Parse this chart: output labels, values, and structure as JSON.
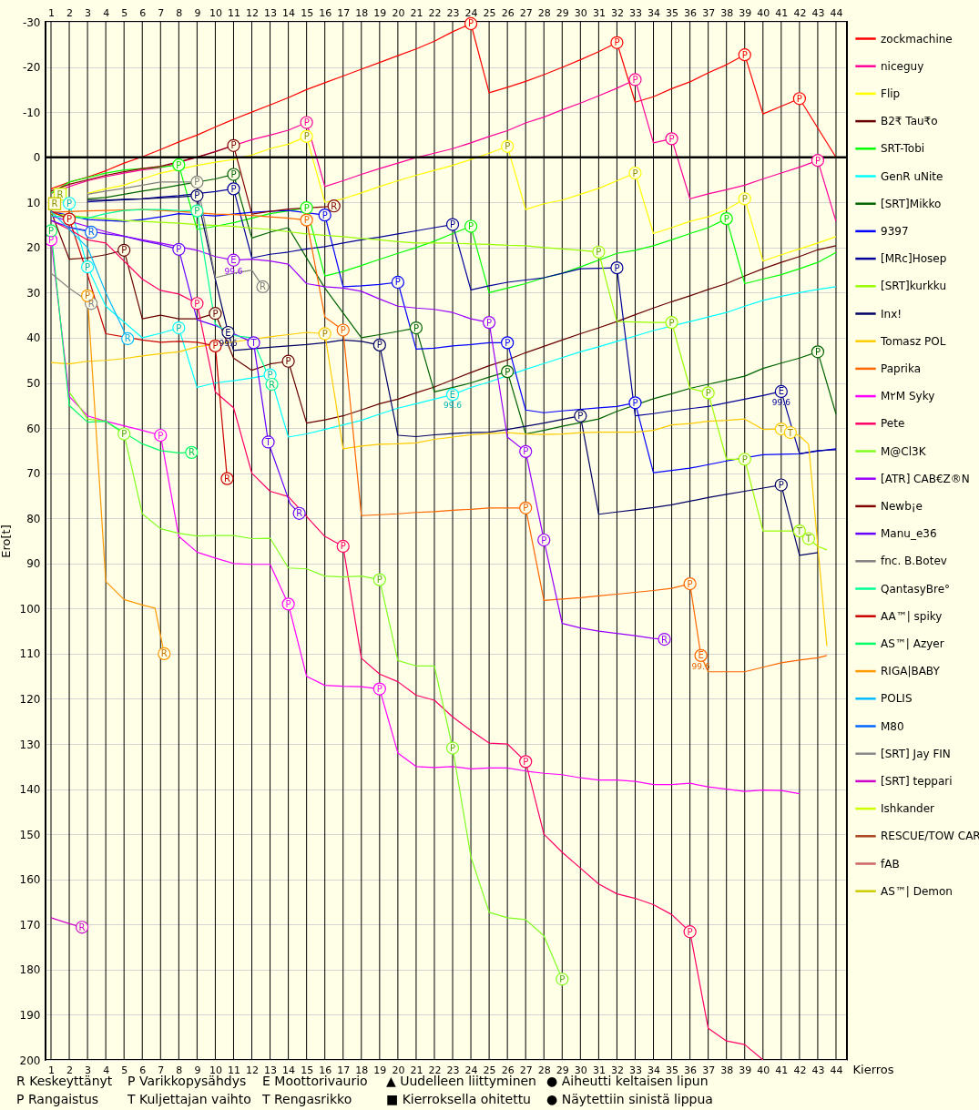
{
  "chart_data": {
    "type": "line",
    "xlabel": "Kierros",
    "ylabel": "Ero[t]",
    "xlim": [
      0.7,
      44.6
    ],
    "ylim": [
      200,
      -30
    ],
    "xticks": [
      1,
      2,
      3,
      4,
      5,
      6,
      7,
      8,
      9,
      10,
      11,
      12,
      13,
      14,
      15,
      16,
      17,
      18,
      19,
      20,
      21,
      22,
      23,
      24,
      25,
      26,
      27,
      28,
      29,
      30,
      31,
      32,
      33,
      34,
      35,
      36,
      37,
      38,
      39,
      40,
      41,
      42,
      43,
      44
    ],
    "x2lim": [
      0.7,
      44.6
    ],
    "x2ticks": [
      1,
      2,
      3,
      4,
      5,
      6,
      7,
      8,
      9,
      10,
      11,
      12,
      13,
      14,
      15,
      16,
      17,
      18,
      19,
      20,
      21,
      22,
      23,
      24,
      25,
      26,
      27,
      28,
      29,
      30,
      31,
      32,
      33,
      34,
      35,
      36,
      37,
      38,
      39,
      40,
      41,
      42,
      43,
      44
    ],
    "yticks": [
      -30,
      -20,
      -10,
      0,
      10,
      20,
      30,
      40,
      50,
      60,
      70,
      80,
      90,
      100,
      110,
      120,
      130,
      140,
      150,
      160,
      170,
      180,
      190,
      200
    ],
    "grid": true,
    "legend": "right",
    "x": [
      1,
      2,
      3,
      4,
      5,
      6,
      7,
      8,
      9,
      10,
      11,
      12,
      13,
      14,
      15,
      16,
      17,
      18,
      19,
      20,
      21,
      22,
      23,
      24,
      25,
      26,
      27,
      28,
      29,
      30,
      31,
      32,
      33,
      34,
      35,
      36,
      37,
      38,
      39,
      40,
      41,
      42,
      43,
      44
    ],
    "ref_lines": [
      {
        "axis": "y",
        "value": 0,
        "color": "#000000"
      }
    ],
    "series": [
      {
        "name": "zockmachine",
        "color": "#ff0000",
        "values": [
          7,
          5.5,
          4.4,
          3,
          1.3,
          -0.1,
          -1.7,
          -3.4,
          -4.9,
          -6.7,
          -8.4,
          -10,
          -11.6,
          -13.2,
          -15,
          -16.5,
          -18,
          -19.5,
          -21,
          -22.5,
          -24,
          -25.7,
          -27.8,
          -29.6,
          -14.3,
          -15.5,
          -16.8,
          -18.3,
          -19.9,
          -21.6,
          -23.4,
          -25.4,
          -12.2,
          -13.4,
          -15.2,
          -16.7,
          -18.7,
          -20.5,
          -22.7,
          -9.6,
          -11.3,
          -13,
          null,
          0
        ]
      },
      {
        "name": "niceguy",
        "color": "#ff0099",
        "values": [
          8,
          6.5,
          5.2,
          4.3,
          3.5,
          2.8,
          2.3,
          null,
          0,
          -1.3,
          null,
          -3.9,
          -4.9,
          -6,
          -7.7,
          6.5,
          5.2,
          3.8,
          2.5,
          1.3,
          0.1,
          -0.9,
          -1.9,
          -3.2,
          -4.6,
          -5.9,
          -7.6,
          -8.9,
          -10.5,
          -12,
          -13.6,
          -15.3,
          -17.2,
          -3.2,
          -4.1,
          9.2,
          8.1,
          7.2,
          6.2,
          4.8,
          3.5,
          2.2,
          0.7,
          14.2
        ]
      },
      {
        "name": "Flip",
        "color": "#ffff00",
        "values": [
          null,
          null,
          8,
          7,
          6.2,
          4.8,
          3.5,
          null,
          1.8,
          1.1,
          0.5,
          -0.5,
          -1.9,
          -2.9,
          -4.6,
          10,
          9.2,
          7.9,
          6.5,
          5.2,
          4,
          2.9,
          1.8,
          0.5,
          -0.9,
          -2.4,
          11.6,
          10.3,
          9.5,
          8.2,
          6.9,
          5.2,
          3.5,
          16.9,
          15.6,
          14.2,
          13.2,
          11.6,
          9.2,
          23,
          21.6,
          20.3,
          19,
          17.6
        ]
      },
      {
        "name": "B2₹ Tau₹o",
        "color": "#660000",
        "values": [
          12,
          22.6,
          22.3,
          21.6,
          20.6,
          35.8,
          35,
          35.8,
          35.8,
          34.6,
          44.5,
          47.2,
          45.8,
          45.2,
          58.9,
          58.2,
          57.3,
          56,
          54.6,
          53.6,
          52.2,
          50.9,
          49.3,
          47.7,
          46.2,
          44.9,
          43.3,
          41.9,
          40.5,
          39.1,
          37.8,
          36.4,
          34.9,
          33.4,
          32,
          30.7,
          29.3,
          28,
          26.3,
          24.7,
          23.3,
          22,
          20.5,
          19.6
        ]
      },
      {
        "name": "SRT-Tobi",
        "color": "#00ff00",
        "values": [
          8,
          5.5,
          4.5,
          3.5,
          2.8,
          2.5,
          2.2,
          1.7,
          16,
          15.3,
          14.5,
          13.5,
          12.5,
          11.9,
          11.2,
          26.3,
          25.3,
          24,
          22.6,
          21.3,
          20,
          18.6,
          16.9,
          15.3,
          30,
          29,
          28,
          26.7,
          25.7,
          24.3,
          null,
          21.3,
          20.6,
          19.6,
          18.3,
          16.9,
          15.6,
          13.6,
          28,
          27,
          26,
          24.7,
          23.3,
          21.1
        ]
      },
      {
        "name": "GenR uNite",
        "color": "#00ffff",
        "values": [
          null,
          10.2,
          24.3,
          33,
          null,
          40,
          39,
          37.8,
          51,
          50,
          49.5,
          48.9,
          48.2,
          62,
          61.3,
          60.3,
          59.3,
          58.3,
          56.9,
          55.6,
          54.6,
          53.6,
          52.6,
          51,
          49.8,
          null,
          47,
          45.7,
          44.4,
          43.1,
          42,
          40.8,
          39.6,
          38.4,
          null,
          36.4,
          35.4,
          34.4,
          33,
          31.7,
          30.8,
          30,
          29.3,
          28.7
        ]
      },
      {
        "name": "[SRT]Mikko",
        "color": "#006400",
        "values": [
          null,
          null,
          9.2,
          8.9,
          8.2,
          7.5,
          6.9,
          6.2,
          null,
          4.8,
          3.8,
          17.9,
          16.6,
          15.6,
          null,
          29,
          null,
          40,
          39.3,
          38.6,
          37.8,
          52,
          null,
          50,
          48.7,
          47.5,
          61.3,
          60.5,
          59.6,
          null,
          58,
          56.3,
          null,
          53.5,
          52.4,
          51.2,
          50.3,
          49.4,
          48.5,
          46.8,
          45.6,
          44.5,
          43.1,
          56.9
        ]
      },
      {
        "name": "9397",
        "color": "#0000ff",
        "values": [
          12,
          null,
          13.8,
          14,
          14.2,
          13.8,
          13.2,
          12.5,
          null,
          13,
          12.6,
          12.2,
          12,
          11.8,
          null,
          12.8,
          28.7,
          28.5,
          28.2,
          27.7,
          42.5,
          42.3,
          41.8,
          41.5,
          41.1,
          41.1,
          56,
          56.6,
          56.2,
          null,
          55.5,
          55.2,
          54.4,
          69.9,
          69.4,
          68.9,
          68.1,
          67.3,
          null,
          65.9,
          65.8,
          65.7,
          65.1,
          64.6
        ]
      },
      {
        "name": "[MRc]Hosep",
        "color": "#000099",
        "values": [
          null,
          null,
          9.9,
          9.6,
          9.4,
          9.2,
          8.8,
          8.5,
          null,
          7.6,
          7,
          22.3,
          21.5,
          21,
          20.3,
          19.8,
          19,
          18.3,
          17.7,
          17,
          16.3,
          15.6,
          14.9,
          29.4,
          28.5,
          27.7,
          27.2,
          26.7,
          25.7,
          24.7,
          24.6,
          24.5,
          57.3,
          56.8,
          56.2,
          55.7,
          55.2,
          54.4,
          53.6,
          52.8,
          51.9,
          65.7,
          65,
          64.8
        ]
      },
      {
        "name": "[SRT]kurkku",
        "color": "#99ff00",
        "x": [
          1,
          2,
          3,
          4,
          5,
          6,
          7,
          8,
          9,
          10,
          11,
          12,
          13,
          14,
          15,
          16,
          17,
          18,
          19,
          20,
          21,
          22,
          23,
          24,
          25,
          26,
          27,
          28,
          29,
          30,
          31,
          32,
          33,
          34,
          35,
          36,
          37,
          38,
          39,
          40,
          41,
          42,
          43,
          43.5
        ],
        "values": [
          12.5,
          null,
          13.3,
          13.6,
          14,
          14.2,
          14.4,
          14.6,
          14.9,
          15.1,
          15.3,
          15.7,
          16,
          16.5,
          17,
          17.3,
          17.6,
          18,
          18.3,
          18.7,
          19,
          19,
          19,
          19.2,
          19.3,
          19.5,
          19.6,
          20,
          20.3,
          20.6,
          21,
          36.4,
          36.5,
          36.6,
          36.6,
          51.2,
          52.2,
          66.9,
          66.9,
          82.8,
          82.8,
          82.8,
          86.2,
          87
        ]
      },
      {
        "name": "Inx!",
        "color": "#000066",
        "x": [
          3,
          4,
          5,
          6,
          7,
          8,
          9,
          10,
          10.7,
          11,
          12,
          13,
          14,
          15,
          16,
          17,
          18,
          19,
          20,
          21,
          22,
          23,
          24,
          25,
          26,
          27,
          28,
          29,
          30,
          31,
          32,
          33,
          34,
          35,
          36,
          37,
          38,
          39,
          40,
          41,
          42,
          43
        ],
        "values": [
          9.5,
          9.5,
          9.3,
          9.2,
          9,
          8.8,
          8.5,
          27,
          38.8,
          42.8,
          null,
          42.1,
          41.8,
          41.5,
          41.1,
          40.5,
          40.8,
          41.6,
          61.6,
          61.9,
          61.5,
          61.2,
          61,
          60.9,
          60.3,
          59.6,
          58.9,
          58.1,
          57.3,
          79.1,
          78.6,
          78.1,
          77.6,
          77,
          76.2,
          75.4,
          74.7,
          74,
          73.3,
          72.6,
          88.2,
          87.6
        ]
      },
      {
        "name": "Tomasz POL",
        "color": "#ffcc00",
        "x": [
          1,
          2,
          3,
          4,
          5,
          6,
          7,
          8,
          9,
          10,
          11,
          12,
          13,
          14,
          15,
          16,
          17,
          18,
          19,
          20,
          21,
          22,
          23,
          24,
          25,
          26,
          27,
          28,
          29,
          30,
          31,
          32,
          33,
          34,
          35,
          36,
          37,
          38,
          39,
          40,
          41,
          42,
          42.5,
          43.5
        ],
        "values": [
          45.5,
          45.8,
          45.2,
          45,
          44.6,
          44,
          43.5,
          43.1,
          42,
          null,
          null,
          null,
          39.8,
          39.3,
          38.8,
          39.1,
          64.6,
          64,
          63.6,
          63.5,
          63.3,
          62.5,
          62,
          61.5,
          61.2,
          61,
          61.3,
          61.4,
          61.3,
          61,
          60.9,
          60.9,
          60.9,
          60.5,
          59.3,
          59,
          58.5,
          58.3,
          58,
          60.3,
          60.2,
          61.7,
          63.6,
          108.3
        ]
      },
      {
        "name": "Paprika",
        "color": "#ff6600",
        "x": [
          1,
          2,
          3,
          4,
          5,
          6,
          7,
          8,
          9,
          10,
          11,
          12,
          13,
          14,
          15,
          16,
          17,
          18,
          19,
          20,
          21,
          22,
          23,
          24,
          25,
          26,
          27,
          28,
          29,
          30,
          31,
          32,
          33,
          34,
          35,
          36,
          36.6,
          37,
          38,
          39,
          40,
          41,
          42,
          43,
          43.5
        ],
        "values": [
          12.2,
          null,
          11.9,
          11.8,
          11.7,
          11.6,
          11.8,
          12,
          null,
          12.6,
          12.7,
          12.9,
          13.2,
          13.5,
          13.9,
          35.4,
          38.3,
          79.4,
          79.2,
          79,
          78.7,
          78.5,
          78.2,
          78,
          77.7,
          77.7,
          77.7,
          98.2,
          97.9,
          97.6,
          97.2,
          96.8,
          96.4,
          96,
          95.5,
          94.5,
          110.4,
          114,
          114,
          114,
          113,
          112,
          111.4,
          110.9,
          110.4
        ]
      },
      {
        "name": "M٢M Syky",
        "color": "#ff00ff",
        "values": [
          18.3,
          53,
          57.3,
          58.5,
          null,
          60.5,
          61.6,
          84,
          87.5,
          88.8,
          90,
          90.2,
          90.2,
          99,
          115,
          117,
          117.2,
          117.3,
          117.8,
          132,
          135,
          135.2,
          135,
          135.5,
          135.3,
          135.3,
          136,
          136.5,
          136.8,
          137.5,
          138,
          138,
          138.3,
          139,
          139,
          138.7,
          139.5,
          140,
          140.5,
          140.2,
          140.3,
          141,
          null,
          null
        ]
      },
      {
        "name": "Pete",
        "color": "#ff0066",
        "values": [
          14,
          16,
          18.3,
          19,
          null,
          27,
          29.5,
          30.3,
          32.4,
          52,
          55.5,
          70,
          74,
          75.2,
          null,
          84,
          86.2,
          111,
          114.5,
          116.2,
          119.2,
          120.3,
          124,
          127,
          129.8,
          130,
          133.9,
          150,
          154,
          157.5,
          161,
          163.2,
          164.2,
          165.6,
          167.8,
          171.6,
          193,
          195.8,
          196.6,
          200,
          null,
          null,
          null,
          null
        ]
      },
      {
        "name": "M@Cl3K",
        "color": "#80ff20",
        "values": [
          null,
          52,
          58,
          58.5,
          61.3,
          79,
          82.3,
          83.3,
          83.9,
          83.8,
          83.8,
          84.5,
          84.4,
          91,
          91.2,
          92.8,
          93,
          92.8,
          93.6,
          111.5,
          112.7,
          112.7,
          130.9,
          155,
          167.3,
          168.5,
          168.9,
          172.5,
          182.1,
          null,
          null,
          null,
          null,
          null,
          null,
          null,
          null,
          null,
          null,
          null,
          null,
          null,
          null,
          null
        ]
      },
      {
        "name": "[ATR] CAB€Z®N",
        "color": "#9900ff",
        "x": [
          1,
          2,
          3,
          4,
          5,
          6,
          7,
          8,
          9,
          10,
          11,
          12,
          13,
          14,
          15,
          16,
          17,
          18,
          19,
          20,
          21,
          22,
          23,
          24,
          25,
          26,
          27,
          28,
          29,
          30,
          31,
          32,
          33,
          34,
          34.6
        ],
        "values": [
          13,
          null,
          null,
          16.5,
          17.5,
          18.3,
          19,
          null,
          20.6,
          22,
          22.8,
          22.6,
          23,
          23.7,
          28,
          28.7,
          29,
          29.7,
          31.4,
          33,
          33.4,
          33.7,
          34.4,
          35.8,
          36.6,
          62,
          65.2,
          84.8,
          103.3,
          104.3,
          105,
          105.5,
          106,
          106.6,
          106.8
        ]
      },
      {
        "name": "Newb¡e",
        "color": "#800000",
        "x": [
          1,
          2,
          3,
          4,
          5,
          6,
          7,
          8,
          9,
          10,
          11,
          12,
          13,
          14,
          15,
          16,
          16.5
        ],
        "values": [
          7.5,
          6,
          5,
          4,
          3.2,
          2.5,
          2,
          null,
          0,
          -1.2,
          -2.6,
          12.6,
          12,
          11.5,
          null,
          11,
          10.8
        ]
      },
      {
        "name": "Manu_e36",
        "color": "#6600ff",
        "x": [
          1,
          2,
          3,
          4,
          5,
          6,
          7,
          8,
          9,
          10,
          11,
          12.1,
          12.9,
          14.1,
          14.6
        ],
        "values": [
          14,
          15.5,
          null,
          17,
          17.5,
          18.5,
          19.3,
          20.4,
          36,
          37.3,
          null,
          41.1,
          63.1,
          76.8,
          78.9
        ]
      },
      {
        "name": "fnc. B.Botev",
        "color": "#808080",
        "x": [
          3,
          4,
          5,
          6,
          7,
          8,
          9,
          10,
          11,
          12,
          12.6
        ],
        "values": [
          8.2,
          7.5,
          6.9,
          6.2,
          5.5,
          5.5,
          5.5,
          26.7,
          25.7,
          25,
          28.7
        ]
      },
      {
        "name": "QantasyBre°",
        "color": "#00ff99",
        "x": [
          1,
          2,
          3,
          4,
          5,
          6,
          7,
          8,
          9,
          10,
          11,
          12,
          13.1
        ],
        "values": [
          13,
          null,
          13.5,
          12.5,
          11.8,
          11.6,
          11.6,
          11.8,
          11.9,
          37,
          39.5,
          40,
          50.3
        ]
      },
      {
        "name": "AA™| spiky",
        "color": "#cc0000",
        "x": [
          1,
          2,
          3,
          4,
          5,
          6,
          7,
          8,
          9,
          10,
          10.65
        ],
        "values": [
          12,
          13.7,
          26,
          39.1,
          null,
          40.5,
          41,
          40.8,
          41,
          41.8,
          71.2
        ]
      },
      {
        "name": "AS™| Azyer",
        "color": "#00ff66",
        "x": [
          1,
          2,
          3,
          4,
          5,
          6,
          7,
          8,
          8.7
        ],
        "values": [
          16.3,
          55,
          58.7,
          58.5,
          null,
          63.5,
          65,
          65.5,
          65.4
        ]
      },
      {
        "name": "RIGA|BABY",
        "color": "#ff9900",
        "x": [
          3,
          4,
          5,
          6,
          6.7,
          7.2
        ],
        "values": [
          30.7,
          94,
          98,
          99.2,
          99.9,
          110
        ]
      },
      {
        "name": "POLIS",
        "color": "#00bbff",
        "x": [
          1,
          2,
          3,
          4,
          5.2
        ],
        "values": [
          12,
          null,
          20,
          30,
          40.2
        ]
      },
      {
        "name": "M80",
        "color": "#0066ff",
        "x": [
          2,
          3.2
        ],
        "values": [
          15.6,
          16.6
        ]
      },
      {
        "name": "[SRT] Jay FIN",
        "color": "#888888",
        "x": [
          1,
          2,
          3.2
        ],
        "values": [
          25.7,
          29,
          32.4
        ]
      },
      {
        "name": "[SRT] teppari",
        "color": "#cc00cc",
        "x": [
          1,
          2,
          2.7
        ],
        "values": [
          168.5,
          169.8,
          170.6
        ]
      },
      {
        "name": "Ishkander",
        "color": "#ccff00",
        "x": [
          1.5
        ],
        "values": [
          8.2
        ],
        "marker": "square"
      },
      {
        "name": "RESCUE/TOW CAR",
        "color": "#aa4422",
        "values": [
          null,
          null,
          null,
          null,
          null,
          null,
          null,
          null,
          null,
          null,
          null,
          null,
          null,
          null,
          null,
          null,
          null,
          null,
          null,
          null,
          null,
          null,
          null,
          null,
          null,
          null,
          null,
          null,
          null,
          null,
          null,
          null,
          null,
          null,
          null,
          null,
          null,
          null,
          null,
          null,
          null,
          null,
          null,
          null
        ]
      },
      {
        "name": "fAB",
        "color": "#cc6666",
        "values": [
          null,
          null,
          null,
          null,
          null,
          null,
          null,
          null,
          null,
          null,
          null,
          null,
          null,
          null,
          null,
          null,
          null,
          null,
          null,
          null,
          null,
          null,
          null,
          null,
          null,
          null,
          null,
          null,
          null,
          null,
          null,
          null,
          null,
          null,
          null,
          null,
          null,
          null,
          null,
          null,
          null,
          null,
          null,
          null
        ]
      },
      {
        "name": "AS™| Demon",
        "color": "#cccc00",
        "x": [
          1.2
        ],
        "values": [
          10.3
        ],
        "marker": "square"
      }
    ],
    "annotations": [
      {
        "text": "P",
        "x": 24,
        "y": -29.6
      },
      {
        "text": "P",
        "x": 32,
        "y": -25.4
      },
      {
        "text": "P",
        "x": 39,
        "y": -22.7
      },
      {
        "text": "P",
        "x": 42,
        "y": -13
      },
      {
        "text": "P",
        "x": 15,
        "y": -7.7
      },
      {
        "text": "P",
        "x": 33,
        "y": -17.2
      },
      {
        "text": "P",
        "x": 35,
        "y": -4.1
      },
      {
        "text": "P",
        "x": 43,
        "y": 0.7
      },
      {
        "text": "P",
        "x": 15,
        "y": -4.6
      },
      {
        "text": "P",
        "x": 26,
        "y": -2.4
      },
      {
        "text": "P",
        "x": 33,
        "y": 3.5
      },
      {
        "text": "P",
        "x": 39,
        "y": 9.2
      },
      {
        "text": "P",
        "x": 5,
        "y": 20.6
      },
      {
        "text": "P",
        "x": 10,
        "y": 34.6
      },
      {
        "text": "P",
        "x": 14,
        "y": 45.2
      },
      {
        "text": "P",
        "x": 8,
        "y": 1.7
      },
      {
        "text": "P",
        "x": 15,
        "y": 11.2
      },
      {
        "text": "P",
        "x": 24,
        "y": 15.3
      },
      {
        "text": "P",
        "x": 38,
        "y": 13.6
      },
      {
        "text": "P",
        "x": 2,
        "y": 10.2
      },
      {
        "text": "P",
        "x": 3,
        "y": 24.3
      },
      {
        "text": "P",
        "x": 8,
        "y": 37.8
      },
      {
        "text": "P",
        "x": 13,
        "y": 48.2
      },
      {
        "text": "E",
        "x": 23,
        "y": 52.6
      },
      {
        "text": "99.6",
        "x": 23,
        "y": 52.6
      },
      {
        "text": "P",
        "x": 11,
        "y": 3.8
      },
      {
        "text": "P",
        "x": 21,
        "y": 37.8
      },
      {
        "text": "P",
        "x": 26,
        "y": 47.5
      },
      {
        "text": "P",
        "x": 43,
        "y": 43.1
      },
      {
        "text": "P",
        "x": 16,
        "y": 12.8
      },
      {
        "text": "P",
        "x": 20,
        "y": 27.7
      },
      {
        "text": "P",
        "x": 26,
        "y": 41.1
      },
      {
        "text": "P",
        "x": 33,
        "y": 54.4
      },
      {
        "text": "P",
        "x": 11,
        "y": 7
      },
      {
        "text": "P",
        "x": 23,
        "y": 14.9
      },
      {
        "text": "P",
        "x": 32,
        "y": 24.5
      },
      {
        "text": "E",
        "x": 41,
        "y": 51.9
      },
      {
        "text": "99.6",
        "x": 41,
        "y": 51.9
      },
      {
        "text": "P",
        "x": 31,
        "y": 21
      },
      {
        "text": "P",
        "x": 35,
        "y": 36.6
      },
      {
        "text": "P",
        "x": 37,
        "y": 52.2
      },
      {
        "text": "P",
        "x": 39,
        "y": 66.9
      },
      {
        "text": "T",
        "x": 42,
        "y": 82.8
      },
      {
        "text": "T",
        "x": 42.5,
        "y": 84.5
      },
      {
        "text": "P",
        "x": 9,
        "y": 8.5
      },
      {
        "text": "E",
        "x": 10.7,
        "y": 38.8
      },
      {
        "text": "99.6",
        "x": 10.7,
        "y": 38.8
      },
      {
        "text": "P",
        "x": 19,
        "y": 41.6
      },
      {
        "text": "P",
        "x": 30,
        "y": 57.3
      },
      {
        "text": "P",
        "x": 41,
        "y": 72.6
      },
      {
        "text": "P",
        "x": 16,
        "y": 39.1
      },
      {
        "text": "T",
        "x": 41,
        "y": 60.2
      },
      {
        "text": "T",
        "x": 41.5,
        "y": 61
      },
      {
        "text": "P",
        "x": 15,
        "y": 13.9
      },
      {
        "text": "P",
        "x": 17,
        "y": 38.3
      },
      {
        "text": "P",
        "x": 27,
        "y": 77.7
      },
      {
        "text": "P",
        "x": 36,
        "y": 94.5
      },
      {
        "text": "E",
        "x": 36.6,
        "y": 110.4
      },
      {
        "text": "99.6",
        "x": 36.6,
        "y": 110.4
      },
      {
        "text": "P",
        "x": 1,
        "y": 18.3
      },
      {
        "text": "P",
        "x": 7,
        "y": 61.6
      },
      {
        "text": "P",
        "x": 14,
        "y": 99
      },
      {
        "text": "P",
        "x": 19,
        "y": 117.8
      },
      {
        "text": "P",
        "x": 9,
        "y": 32.4
      },
      {
        "text": "P",
        "x": 17,
        "y": 86.2
      },
      {
        "text": "P",
        "x": 27,
        "y": 133.9
      },
      {
        "text": "P",
        "x": 36,
        "y": 171.6
      },
      {
        "text": "P",
        "x": 5,
        "y": 61.3
      },
      {
        "text": "P",
        "x": 19,
        "y": 93.6
      },
      {
        "text": "P",
        "x": 23,
        "y": 130.9
      },
      {
        "text": "P",
        "x": 29,
        "y": 182.1
      },
      {
        "text": "E",
        "x": 11,
        "y": 22.8
      },
      {
        "text": "99.6",
        "x": 11,
        "y": 22.8
      },
      {
        "text": "P",
        "x": 25,
        "y": 36.6
      },
      {
        "text": "P",
        "x": 27,
        "y": 65.2
      },
      {
        "text": "P",
        "x": 28,
        "y": 84.8
      },
      {
        "text": "R",
        "x": 34.6,
        "y": 106.8
      },
      {
        "text": "P",
        "x": 11,
        "y": -2.6
      },
      {
        "text": "R",
        "x": 16.5,
        "y": 10.8
      },
      {
        "text": "P",
        "x": 8,
        "y": 20.4
      },
      {
        "text": "T",
        "x": 12.1,
        "y": 41.1
      },
      {
        "text": "T",
        "x": 12.9,
        "y": 63.1
      },
      {
        "text": "R",
        "x": 14.6,
        "y": 78.9
      },
      {
        "text": "P",
        "x": 9,
        "y": 5.5
      },
      {
        "text": "R",
        "x": 12.6,
        "y": 28.7
      },
      {
        "text": "R",
        "x": 3.2,
        "y": 32.4
      },
      {
        "text": "P",
        "x": 9,
        "y": 11.9
      },
      {
        "text": "R",
        "x": 13.1,
        "y": 50.3
      },
      {
        "text": "P",
        "x": 1,
        "y": 16.3
      },
      {
        "text": "R",
        "x": 8.7,
        "y": 65.4
      },
      {
        "text": "P",
        "x": 2,
        "y": 13.7
      },
      {
        "text": "P",
        "x": 10,
        "y": 41.8
      },
      {
        "text": "R",
        "x": 10.65,
        "y": 71.2
      },
      {
        "text": "P",
        "x": 3,
        "y": 30.7
      },
      {
        "text": "R",
        "x": 7.2,
        "y": 110
      },
      {
        "text": "R",
        "x": 5.2,
        "y": 40.2
      },
      {
        "text": "R",
        "x": 3.2,
        "y": 16.6
      },
      {
        "text": "R",
        "x": 2.7,
        "y": 170.6
      },
      {
        "text": "R",
        "x": 1.5,
        "y": 8.2
      },
      {
        "text": "R",
        "x": 1.2,
        "y": 10.3
      },
      "R Keskeyttänyt",
      "P Varikkopysähdys",
      "E Moottorivaurio",
      "▲ Uudelleen liittyminen",
      "● Aiheutti keltaisen lipun",
      "P Rangaistus",
      "T Kuljettajan vaihto",
      "T Rengasrikko",
      "■ Kierroksella ohitettu",
      "● Näytettiin sinistä lippua"
    ]
  }
}
